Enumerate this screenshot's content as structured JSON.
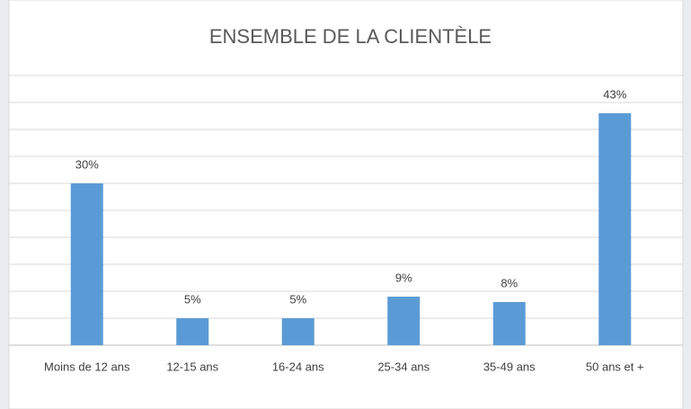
{
  "chart_data": {
    "type": "bar",
    "title": "ENSEMBLE DE LA CLIENTÈLE",
    "categories": [
      "Moins de 12 ans",
      "12-15 ans",
      "16-24 ans",
      "25-34 ans",
      "35-49 ans",
      "50 ans et +"
    ],
    "values": [
      30,
      5,
      5,
      9,
      8,
      43
    ],
    "value_labels": [
      "30%",
      "5%",
      "5%",
      "9%",
      "8%",
      "43%"
    ],
    "color": "#5b9bd5",
    "ylim": [
      0,
      50
    ],
    "yticks": [
      0,
      5,
      10,
      15,
      20,
      25,
      30,
      35,
      40,
      45,
      50
    ],
    "grid": true
  }
}
